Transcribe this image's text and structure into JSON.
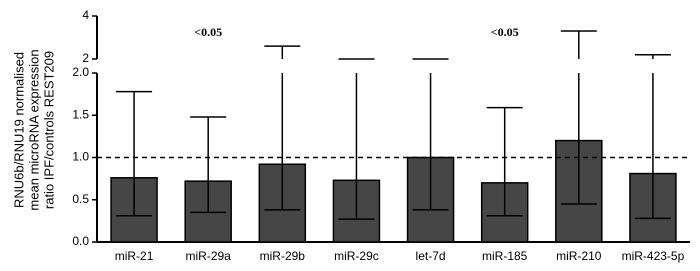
{
  "chart_data": {
    "type": "bar",
    "y_label_lines": [
      "RNU6b/RNU19 normalised",
      "mean microRNA expression",
      "ratio IPF/controls REST209"
    ],
    "categories": [
      "miR-21",
      "miR-29a",
      "miR-29b",
      "miR-29c",
      "let-7d",
      "miR-185",
      "miR-210",
      "miR-423-5p"
    ],
    "values": [
      0.76,
      0.72,
      0.92,
      0.73,
      1.0,
      0.7,
      1.2,
      0.81
    ],
    "error_upper": [
      1.78,
      1.48,
      2.6,
      2.0,
      2.0,
      1.59,
      3.3,
      2.2
    ],
    "error_lower": [
      0.31,
      0.35,
      0.38,
      0.27,
      0.38,
      0.31,
      0.45,
      0.28
    ],
    "color": "#464646",
    "ylim": [
      0,
      2
    ],
    "yticks": [
      {
        "value": 0,
        "label": "0.0"
      },
      0.5,
      {
        "value": 1,
        "label": "1.0"
      },
      1.5,
      {
        "value": 2,
        "label": "2.0"
      }
    ],
    "ylim_upper": [
      2,
      4
    ],
    "yticks_upper": [
      2,
      4
    ],
    "reference_line": 1,
    "annotations": [
      {
        "text": "<0.05",
        "category": "miR-29a"
      },
      {
        "text": "<0.05",
        "category": "miR-185"
      }
    ]
  }
}
